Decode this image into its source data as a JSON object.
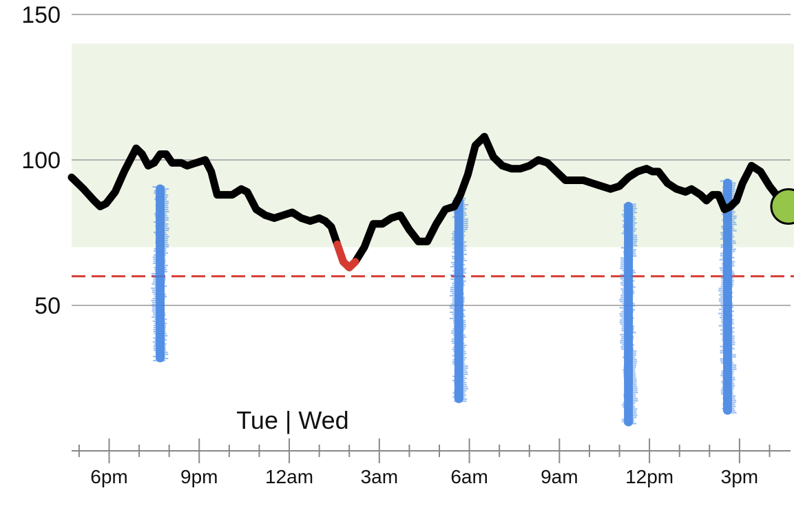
{
  "chart_data": {
    "type": "line",
    "x_unit": "hours from midnight Tuesday (day boundary at 24)",
    "day_label": "Tue | Wed",
    "xlim": [
      16.75,
      40.7
    ],
    "ylim": [
      0,
      150
    ],
    "y_ticks": [
      50,
      100,
      150
    ],
    "x_tick_labels": [
      {
        "x": 18,
        "label": "6pm"
      },
      {
        "x": 21,
        "label": "9pm"
      },
      {
        "x": 24,
        "label": "12am"
      },
      {
        "x": 27,
        "label": "3am"
      },
      {
        "x": 30,
        "label": "6am"
      },
      {
        "x": 33,
        "label": "9am"
      },
      {
        "x": 36,
        "label": "12pm"
      },
      {
        "x": 39,
        "label": "3pm"
      }
    ],
    "target_range": [
      70,
      140
    ],
    "low_threshold": 60,
    "grid": true,
    "colors": {
      "line": "#000000",
      "low_segment": "#d63b32",
      "target_band": "#eef5e6",
      "threshold": "#d63b32",
      "activity": "#3d7fe0",
      "current_marker": "#95c64a"
    },
    "series": [
      {
        "x": [
          16.75,
          17.15,
          17.5,
          17.7,
          17.9,
          18.2,
          18.5,
          18.9,
          19.1,
          19.3,
          19.5,
          19.7,
          19.9,
          20.1,
          20.4,
          20.6,
          20.9,
          21.2,
          21.4,
          21.6,
          21.8,
          22.1,
          22.4,
          22.6,
          22.9,
          23.2,
          23.5,
          23.8,
          24.1,
          24.4,
          24.7,
          25.0,
          25.2,
          25.4,
          25.6,
          25.8,
          26.0,
          26.2,
          26.5,
          26.8,
          27.1,
          27.4,
          27.7,
          28.0,
          28.3,
          28.6,
          28.9,
          29.2,
          29.5,
          29.7,
          29.95,
          30.2,
          30.5,
          30.8,
          31.1,
          31.4,
          31.7,
          32.0,
          32.3,
          32.6,
          32.9,
          33.2,
          33.5,
          33.8,
          34.1,
          34.4,
          34.7,
          35.0,
          35.3,
          35.6,
          35.9,
          36.1,
          36.3,
          36.6,
          36.9,
          37.2,
          37.4,
          37.7,
          37.9,
          38.1,
          38.3,
          38.5,
          38.7,
          38.9,
          39.1,
          39.4,
          39.7,
          40.0,
          40.3,
          40.6
        ],
        "y": [
          94,
          90,
          86,
          84,
          85,
          89,
          96,
          104,
          102,
          98,
          99,
          102,
          102,
          99,
          99,
          98,
          99,
          100,
          96,
          88,
          88,
          88,
          90,
          89,
          83,
          81,
          80,
          81,
          82,
          80,
          79,
          80,
          79,
          77,
          71,
          65,
          63,
          65,
          70,
          78,
          78,
          80,
          81,
          76,
          72,
          72,
          78,
          83,
          84,
          88,
          95,
          105,
          108,
          101,
          98,
          97,
          97,
          98,
          100,
          99,
          96,
          93,
          93,
          93,
          92,
          91,
          90,
          91,
          94,
          96,
          97,
          96,
          96,
          92,
          90,
          89,
          90,
          88,
          86,
          88,
          88,
          83,
          84,
          86,
          92,
          98,
          96,
          91,
          87,
          86
        ]
      }
    ],
    "low_segment_x": [
      25.6,
      26.3
    ],
    "activity_bars": [
      {
        "x": 19.7,
        "top": 91,
        "bottom": 31
      },
      {
        "x": 29.65,
        "top": 87,
        "bottom": 17
      },
      {
        "x": 35.3,
        "top": 85,
        "bottom": 9
      },
      {
        "x": 38.6,
        "top": 93,
        "bottom": 13
      }
    ],
    "current_value": {
      "x": 40.7,
      "y": 84
    }
  }
}
